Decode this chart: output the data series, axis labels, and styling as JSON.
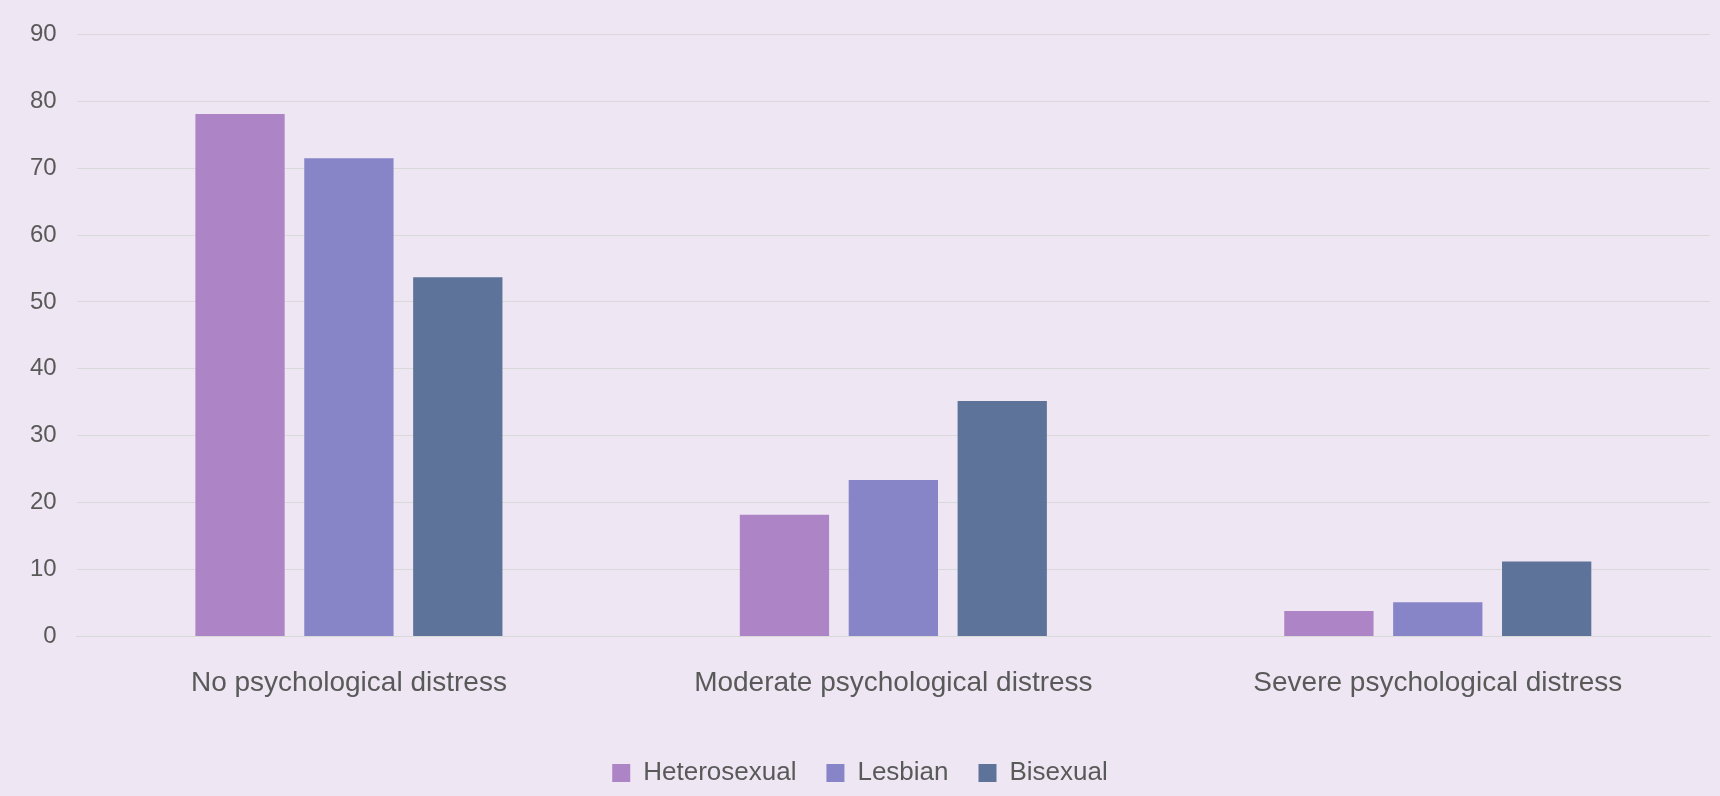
{
  "chart_data": {
    "type": "bar",
    "categories": [
      "No psychological distress",
      "Moderate psychological distress",
      "Severe psychological distress"
    ],
    "series": [
      {
        "name": "Heterosexual",
        "color": "#ad84c6",
        "values": [
          78.1,
          18.2,
          3.8
        ]
      },
      {
        "name": "Lesbian",
        "color": "#8784c7",
        "values": [
          71.5,
          23.4,
          5.1
        ]
      },
      {
        "name": "Bisexual",
        "color": "#5d739a",
        "values": [
          53.7,
          35.2,
          11.2
        ]
      }
    ],
    "ylim": [
      0,
      90
    ],
    "yticks": [
      0,
      10,
      20,
      30,
      40,
      50,
      60,
      70,
      80,
      90
    ],
    "grid": "y",
    "legend": "bottom"
  }
}
